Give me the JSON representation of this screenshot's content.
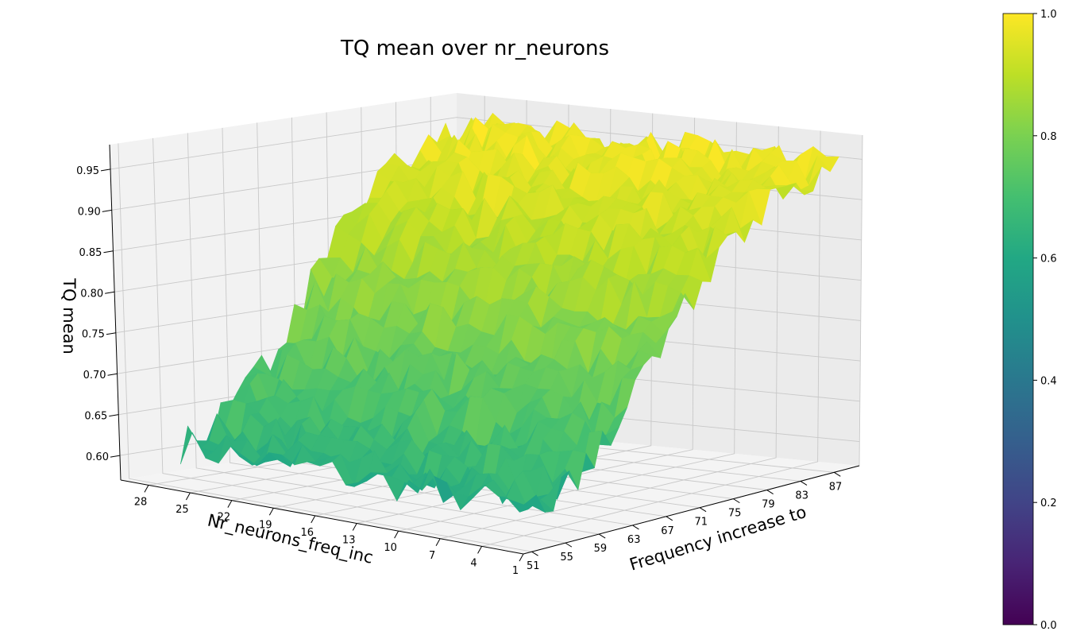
{
  "chart_data": {
    "type": "surface",
    "title": "TQ mean over nr_neurons",
    "xlabel": "Frequency increase to",
    "ylabel": "Nr_neurons_freq_inc",
    "zlabel": "TQ mean",
    "x_ticks": [
      "51",
      "55",
      "59",
      "63",
      "67",
      "71",
      "75",
      "79",
      "83",
      "87"
    ],
    "y_ticks": [
      "28",
      "25",
      "22",
      "19",
      "16",
      "13",
      "10",
      "7",
      "4",
      "1"
    ],
    "z_ticks": [
      "0.60",
      "0.65",
      "0.70",
      "0.75",
      "0.80",
      "0.85",
      "0.90",
      "0.95"
    ],
    "x_range": [
      50,
      90
    ],
    "y_range": [
      1,
      30
    ],
    "zlim": [
      0.57,
      0.98
    ],
    "colormap": "viridis",
    "colorbar": {
      "range": [
        0.0,
        1.0
      ],
      "ticks": [
        "0.0",
        "0.2",
        "0.4",
        "0.6",
        "0.8",
        "1.0"
      ]
    },
    "surface_summary": {
      "z_at_x_min": 0.62,
      "z_at_x_max": 0.93,
      "trend": "TQ mean rises with frequency increase; nearly independent of Nr_neurons_freq_inc"
    },
    "grid": true
  }
}
